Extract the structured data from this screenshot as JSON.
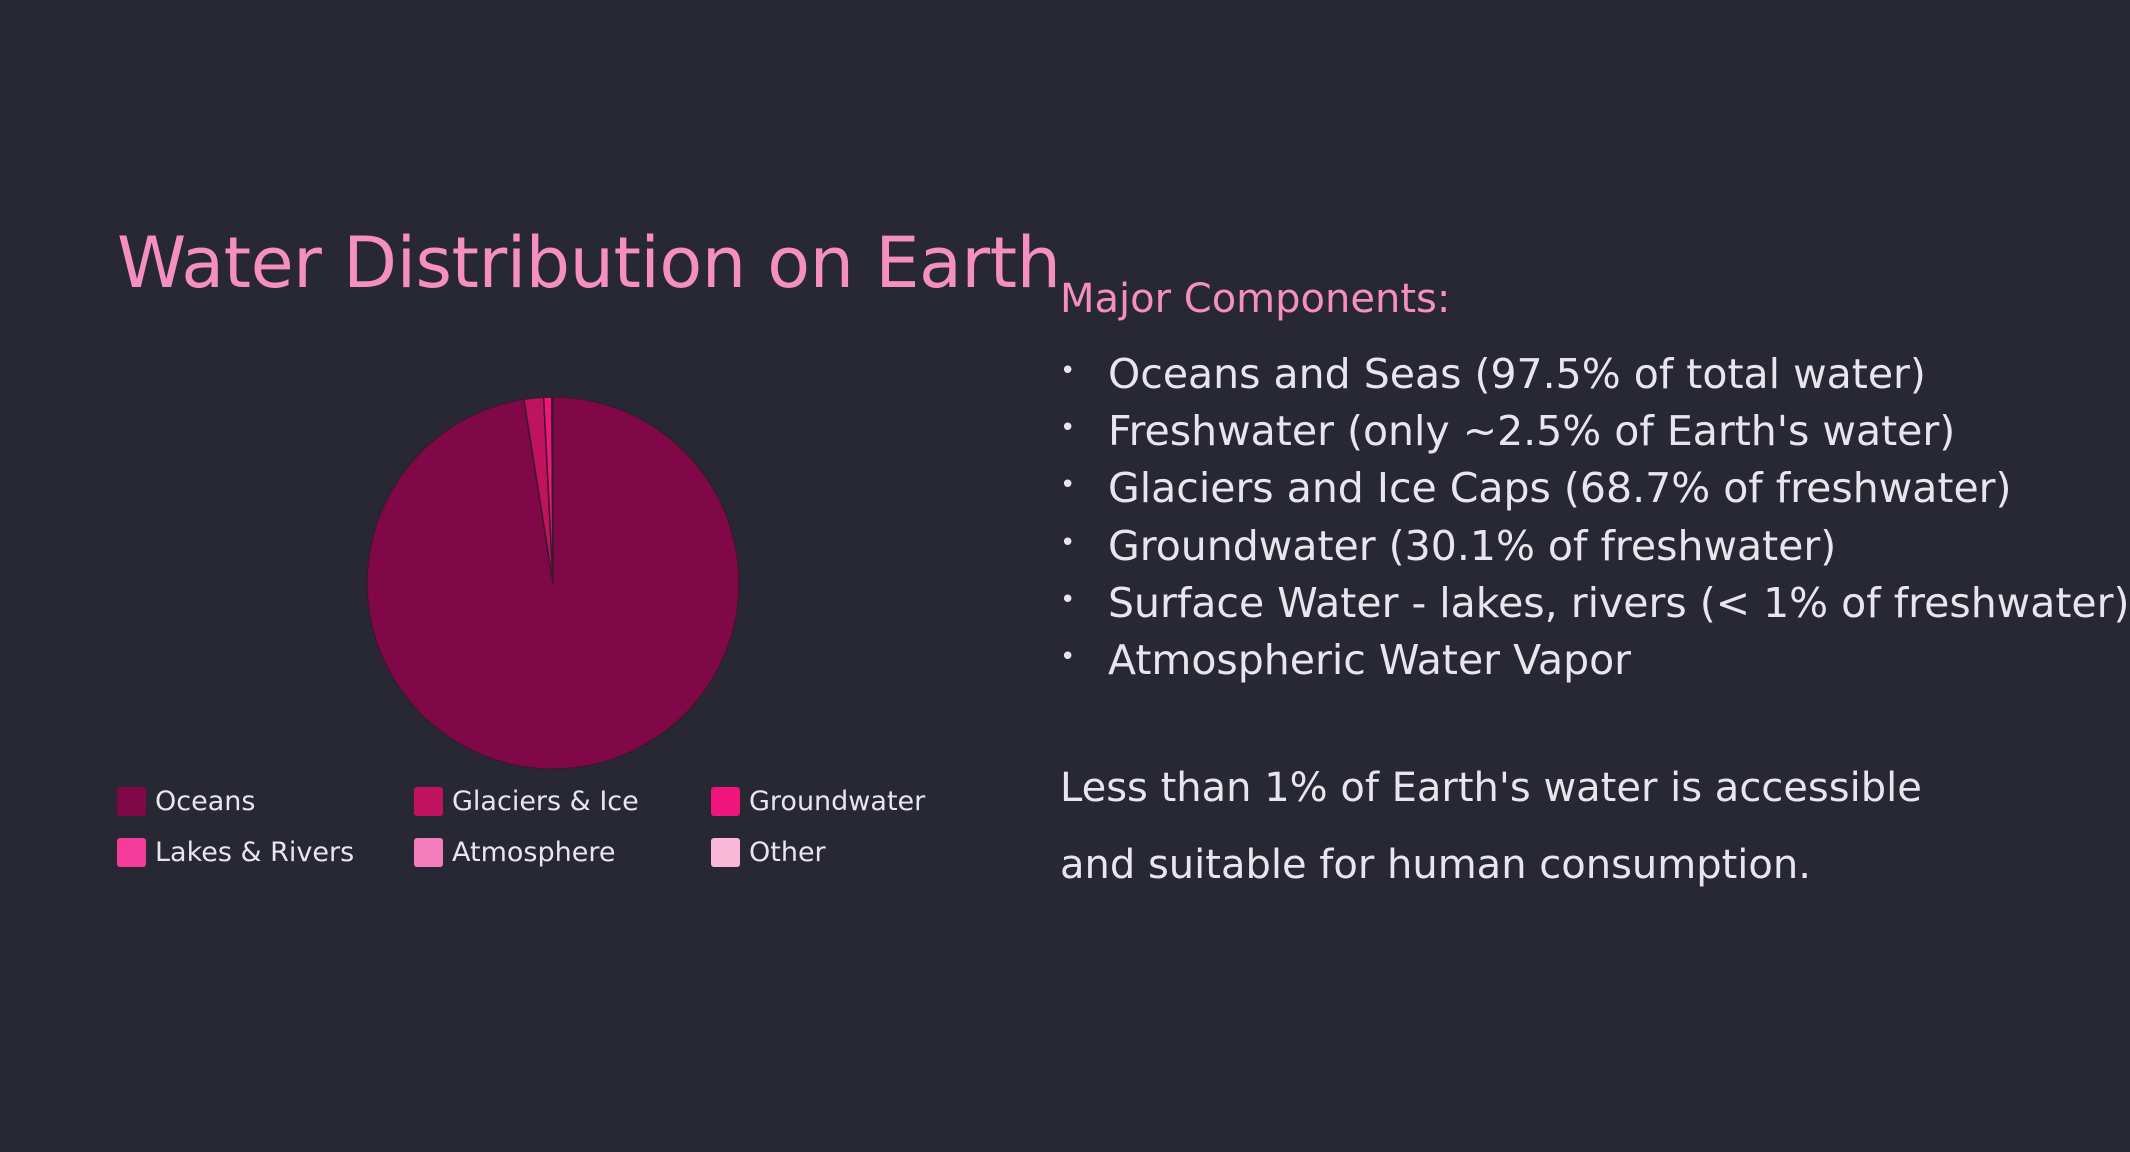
{
  "title": "Water Distribution on Earth",
  "colors": {
    "background": "#272833",
    "accent": "#f48fbf",
    "text": "#e6e6ec",
    "slice_stroke": "#3a1a2c"
  },
  "chart_data": {
    "type": "pie",
    "title": "",
    "categories": [
      "Oceans",
      "Glaciers & Ice",
      "Groundwater",
      "Lakes & Rivers",
      "Atmosphere",
      "Other"
    ],
    "values": [
      97.5,
      1.7,
      0.7,
      0.05,
      0.01,
      0.04
    ],
    "colors": [
      "#800848",
      "#c0135f",
      "#f0147c",
      "#f53c9a",
      "#f47ebd",
      "#f9b9d6"
    ],
    "legend_position": "bottom"
  },
  "panel": {
    "subtitle": "Major Components:",
    "bullets": [
      "Oceans and Seas (97.5% of total water)",
      "Freshwater (only ~2.5% of Earth's water)",
      "Glaciers and Ice Caps (68.7% of freshwater)",
      "Groundwater (30.1% of freshwater)",
      "Surface Water - lakes, rivers (< 1% of freshwater)",
      "Atmospheric Water Vapor"
    ],
    "bullet_symbol": "•",
    "note": "Less than 1% of Earth's water is accessible and suitable for human consumption."
  }
}
